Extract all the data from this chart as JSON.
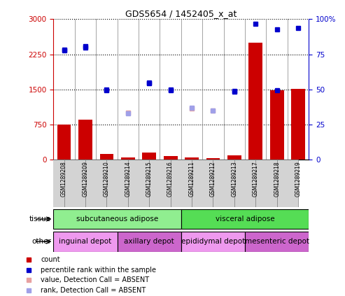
{
  "title": "GDS5654 / 1452405_x_at",
  "samples": [
    "GSM1289208",
    "GSM1289209",
    "GSM1289210",
    "GSM1289214",
    "GSM1289215",
    "GSM1289216",
    "GSM1289211",
    "GSM1289212",
    "GSM1289213",
    "GSM1289217",
    "GSM1289218",
    "GSM1289219"
  ],
  "bar_values": [
    750,
    850,
    120,
    50,
    150,
    80,
    50,
    40,
    100,
    2500,
    1480,
    1520
  ],
  "dot_values": [
    2350,
    2400,
    1490,
    null,
    1630,
    1480,
    null,
    null,
    1450,
    null,
    1490,
    null
  ],
  "dot_absent_values": [
    null,
    null,
    null,
    1000,
    null,
    null,
    1100,
    1050,
    null,
    null,
    null,
    null
  ],
  "rank_blue_present": [
    78,
    81,
    50,
    null,
    55,
    50,
    null,
    null,
    49,
    97,
    93,
    94
  ],
  "rank_blue_absent": [
    null,
    null,
    null,
    33,
    null,
    null,
    37,
    35,
    null,
    null,
    null,
    null
  ],
  "ylim_left": [
    0,
    3000
  ],
  "ylim_right": [
    0,
    100
  ],
  "yticks_left": [
    0,
    750,
    1500,
    2250,
    3000
  ],
  "yticks_right": [
    0,
    25,
    50,
    75,
    100
  ],
  "bar_color": "#cc0000",
  "dot_color_present": "#0000cc",
  "dot_color_absent_value": "#e8a0a0",
  "dot_color_absent_rank": "#a0a0e8",
  "tissue_groups": [
    {
      "label": "subcutaneous adipose",
      "start": 0,
      "end": 6,
      "color": "#90ee90"
    },
    {
      "label": "visceral adipose",
      "start": 6,
      "end": 12,
      "color": "#55dd55"
    }
  ],
  "other_groups": [
    {
      "label": "inguinal depot",
      "start": 0,
      "end": 3,
      "color": "#ee99ee"
    },
    {
      "label": "axillary depot",
      "start": 3,
      "end": 6,
      "color": "#cc66cc"
    },
    {
      "label": "epididymal depot",
      "start": 6,
      "end": 9,
      "color": "#ee99ee"
    },
    {
      "label": "mesenteric depot",
      "start": 9,
      "end": 12,
      "color": "#cc66cc"
    }
  ],
  "legend_items": [
    {
      "label": "count",
      "color": "#cc0000"
    },
    {
      "label": "percentile rank within the sample",
      "color": "#0000cc"
    },
    {
      "label": "value, Detection Call = ABSENT",
      "color": "#e8a0a0"
    },
    {
      "label": "rank, Detection Call = ABSENT",
      "color": "#a0a0e8"
    }
  ]
}
